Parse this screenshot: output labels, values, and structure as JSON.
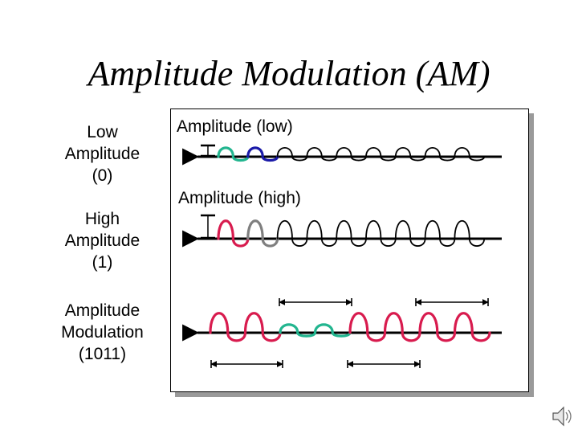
{
  "title": "Amplitude Modulation (AM)",
  "labels": {
    "low": "Low\nAmplitude\n(0)",
    "high": "High\nAmplitude\n(1)",
    "modulation": "Amplitude\nModulation\n(1011)"
  },
  "panel": {
    "low_caption": "Amplitude (low)",
    "high_caption": "Amplitude (high)"
  },
  "signals": {
    "low": {
      "bits": [],
      "segments": [
        {
          "amp": "low",
          "cycles": 1,
          "color": "#22b58f"
        },
        {
          "amp": "low",
          "cycles": 1,
          "color": "#1a1aa8"
        },
        {
          "amp": "low",
          "cycles": 7,
          "color": "#000000"
        }
      ]
    },
    "high": {
      "segments": [
        {
          "amp": "high",
          "cycles": 1,
          "color": "#d81b4e"
        },
        {
          "amp": "high",
          "cycles": 1,
          "color": "#7f7f7f"
        },
        {
          "amp": "high",
          "cycles": 7,
          "color": "#000000"
        }
      ]
    },
    "modulated": {
      "bits": "1011",
      "segments": [
        {
          "amp": "high",
          "cycles": 2,
          "color": "#d81b4e"
        },
        {
          "amp": "low",
          "cycles": 2,
          "color": "#22b58f"
        },
        {
          "amp": "high",
          "cycles": 2,
          "color": "#d81b4e"
        },
        {
          "amp": "high",
          "cycles": 2,
          "color": "#d81b4e"
        }
      ]
    }
  },
  "icons": {
    "speaker": "speaker-icon"
  }
}
